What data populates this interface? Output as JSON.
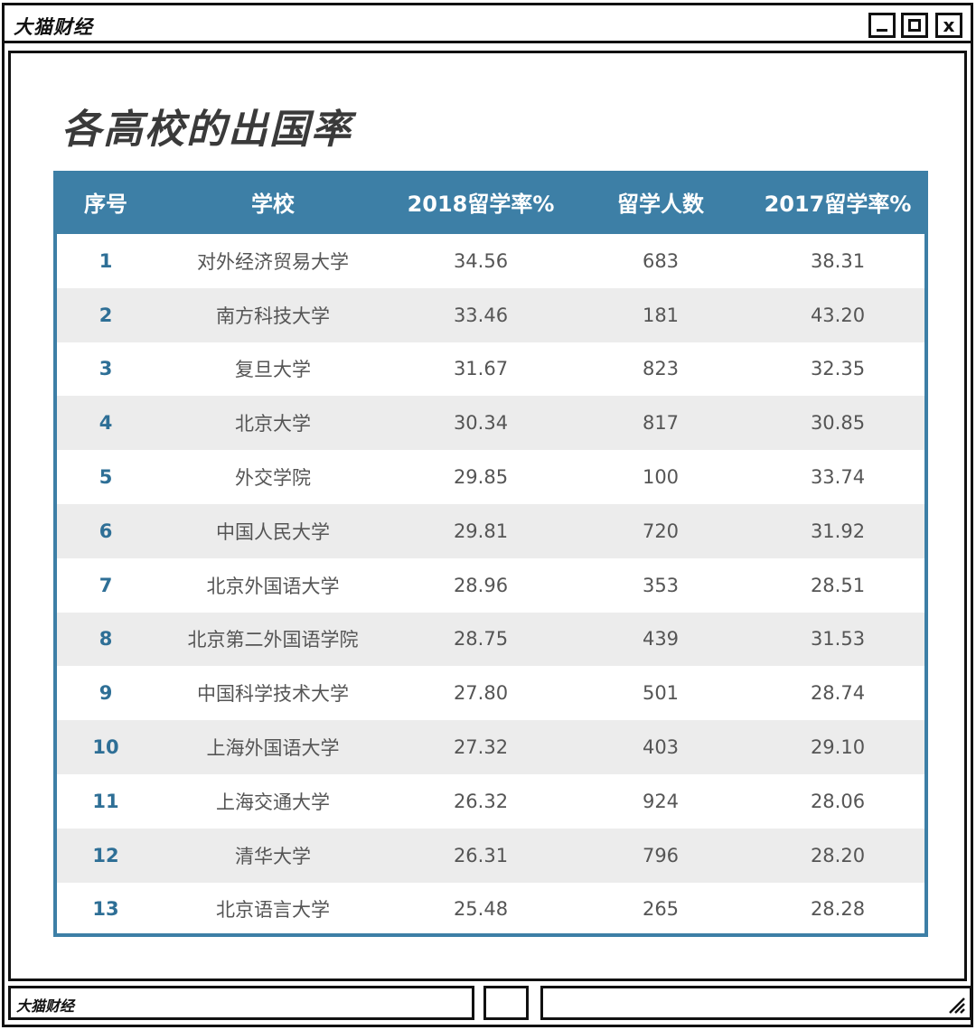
{
  "window": {
    "title": "大猫财经",
    "close_label": "x"
  },
  "page": {
    "title": "各高校的出国率"
  },
  "table": {
    "headers": [
      "序号",
      "学校",
      "2018留学率%",
      "留学人数",
      "2017留学率%"
    ],
    "rows": [
      [
        "1",
        "对外经济贸易大学",
        "34.56",
        "683",
        "38.31"
      ],
      [
        "2",
        "南方科技大学",
        "33.46",
        "181",
        "43.20"
      ],
      [
        "3",
        "复旦大学",
        "31.67",
        "823",
        "32.35"
      ],
      [
        "4",
        "北京大学",
        "30.34",
        "817",
        "30.85"
      ],
      [
        "5",
        "外交学院",
        "29.85",
        "100",
        "33.74"
      ],
      [
        "6",
        "中国人民大学",
        "29.81",
        "720",
        "31.92"
      ],
      [
        "7",
        "北京外国语大学",
        "28.96",
        "353",
        "28.51"
      ],
      [
        "8",
        "北京第二外国语学院",
        "28.75",
        "439",
        "31.53"
      ],
      [
        "9",
        "中国科学技术大学",
        "27.80",
        "501",
        "28.74"
      ],
      [
        "10",
        "上海外国语大学",
        "27.32",
        "403",
        "29.10"
      ],
      [
        "11",
        "上海交通大学",
        "26.32",
        "924",
        "28.06"
      ],
      [
        "12",
        "清华大学",
        "26.31",
        "796",
        "28.20"
      ],
      [
        "13",
        "北京语言大学",
        "25.48",
        "265",
        "28.28"
      ]
    ]
  },
  "statusbar": {
    "label": "大猫财经"
  },
  "colors": {
    "table_header_bg": "#3d7fa6",
    "row_alt_bg": "#ececec",
    "index_text": "#2e6f96"
  }
}
